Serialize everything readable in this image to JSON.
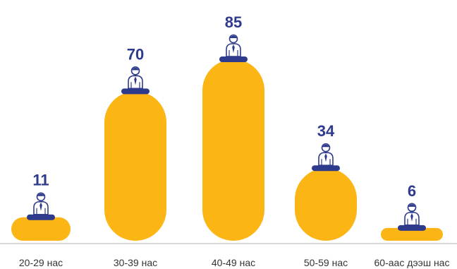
{
  "chart_data": {
    "type": "bar",
    "title": "",
    "xlabel": "",
    "ylabel": "",
    "categories": [
      "20-29 нас",
      "30-39 нас",
      "40-49 нас",
      "50-59 нас",
      "60-аас дээш нас"
    ],
    "values": [
      11,
      70,
      85,
      34,
      6
    ],
    "ylim": [
      0,
      85
    ],
    "grid": false,
    "legend": "none",
    "data_labels": true,
    "icons": "person-icon"
  },
  "colors": {
    "bar": "#fbb616",
    "value_label": "#2e3a8c",
    "stand": "#2e3a8c",
    "icon": "#2e3a8c",
    "axis": "#d9d9d9",
    "category_label": "#333333"
  }
}
